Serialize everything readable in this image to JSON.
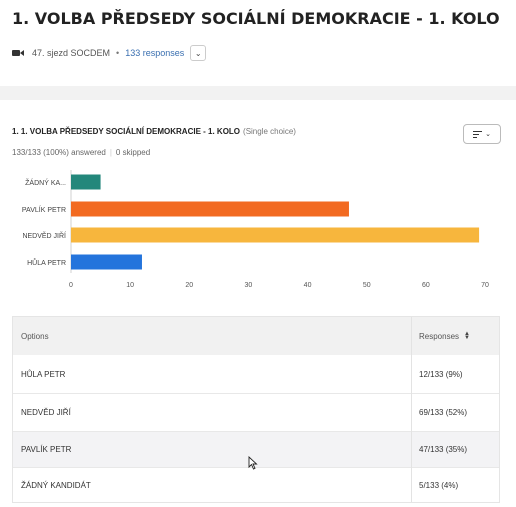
{
  "page": {
    "title": "1. VOLBA PŘEDSEDY SOCIÁLNÍ DEMOKRACIE - 1. KOLO",
    "meta_icon": "video-camera-icon",
    "meta_source": "47. sjezd SOCDEM",
    "meta_separator": "•",
    "meta_responses": "133 responses",
    "meta_chevron": "⌄"
  },
  "question": {
    "title": "1. 1. VOLBA PŘEDSEDY SOCIÁLNÍ DEMOKRACIE - 1. KOLO",
    "type": "(Single choice)",
    "answered": "133/133 (100%) answered",
    "skipped": "0 skipped",
    "view_icon": "bar-list-icon",
    "view_chevron": "⌄"
  },
  "chart_data": {
    "type": "bar",
    "orientation": "horizontal",
    "categories": [
      "ŽÁDNÝ KA...",
      "PAVLÍK PETR",
      "NEDVĚD JIŘÍ",
      "HŮLA PETR"
    ],
    "values": [
      5,
      47,
      69,
      12
    ],
    "colors": [
      "#23877b",
      "#f26a21",
      "#f7b63d",
      "#2474dc"
    ],
    "xlim": [
      0,
      70
    ],
    "xticks": [
      0,
      10,
      20,
      30,
      40,
      50,
      60,
      70
    ],
    "grid": false
  },
  "table": {
    "header_option": "Options",
    "header_responses": "Responses",
    "sort_icon": "sort-icon",
    "rows": [
      {
        "option": "HŮLA PETR",
        "responses": "12/133 (9%)"
      },
      {
        "option": "NEDVĚD JIŘÍ",
        "responses": "69/133 (52%)"
      },
      {
        "option": "PAVLÍK PETR",
        "responses": "47/133 (35%)"
      },
      {
        "option": "ŽÁDNÝ KANDIDÁT",
        "responses": "5/133 (4%)"
      }
    ]
  },
  "colors": {
    "link": "#3a6fb0",
    "band": "#f2f2f2"
  }
}
